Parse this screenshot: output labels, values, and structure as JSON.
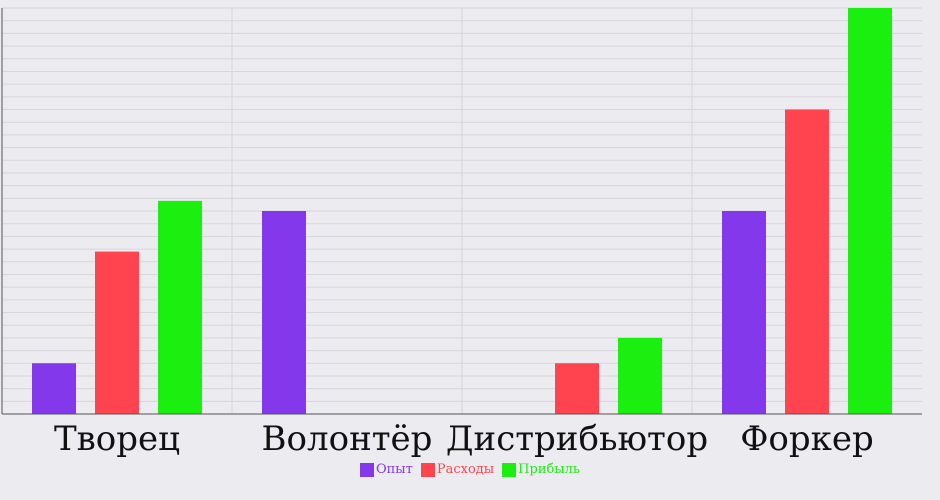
{
  "chart_data": {
    "type": "bar",
    "title": "",
    "xlabel": "",
    "ylabel": "",
    "categories": [
      "Творец",
      "Волонтёр",
      "Дистрибьютор",
      "Форкер"
    ],
    "series": [
      {
        "name": "Опыт",
        "color": "#8338ec",
        "values": [
          2,
          8,
          0,
          8
        ]
      },
      {
        "name": "Расходы",
        "color": "#ff444f",
        "values": [
          6.4,
          0,
          2,
          12
        ]
      },
      {
        "name": "Прибыль",
        "color": "#1aef0f",
        "values": [
          8.4,
          0,
          3,
          16
        ]
      }
    ],
    "ylim": [
      0,
      16
    ],
    "grid": true,
    "legend_position": "bottom-center"
  }
}
